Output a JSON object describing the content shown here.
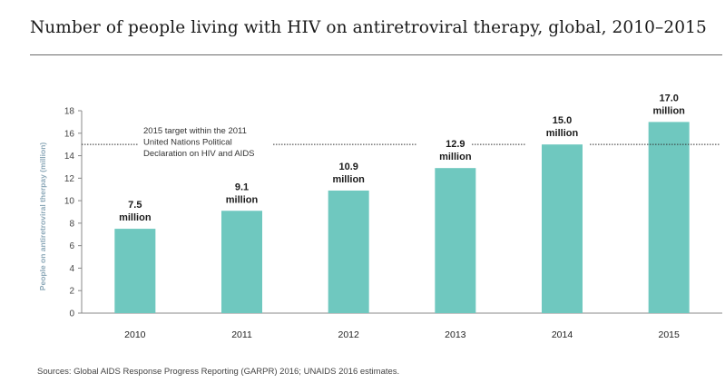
{
  "title": "Number of people living with HIV on antiretroviral therapy, global, 2010–2015",
  "source": "Sources: Global AIDS Response Progress Reporting (GARPR) 2016; UNAIDS 2016 estimates.",
  "colors": {
    "bar": "#6fc8bf",
    "axis": "#888888",
    "target_line": "#333333",
    "ylabel": "#8ca8b8"
  },
  "chart_data": {
    "type": "bar",
    "categories": [
      "2010",
      "2011",
      "2012",
      "2013",
      "2014",
      "2015"
    ],
    "values": [
      7.5,
      9.1,
      10.9,
      12.9,
      15.0,
      17.0
    ],
    "data_labels": [
      [
        "7.5",
        "million"
      ],
      [
        "9.1",
        "million"
      ],
      [
        "10.9",
        "million"
      ],
      [
        "12.9",
        "million"
      ],
      [
        "15.0",
        "million"
      ],
      [
        "17.0",
        "million"
      ]
    ],
    "ylabel": "People on antiretroviral therpay (million)",
    "ylim": [
      0,
      18
    ],
    "yticks": [
      0,
      2,
      4,
      6,
      8,
      10,
      12,
      14,
      16,
      18
    ],
    "grid": false,
    "target": {
      "value": 15,
      "label_lines": [
        "2015 target within the 2011",
        "United Nations Political",
        "Declaration on HIV and AIDS"
      ]
    }
  }
}
